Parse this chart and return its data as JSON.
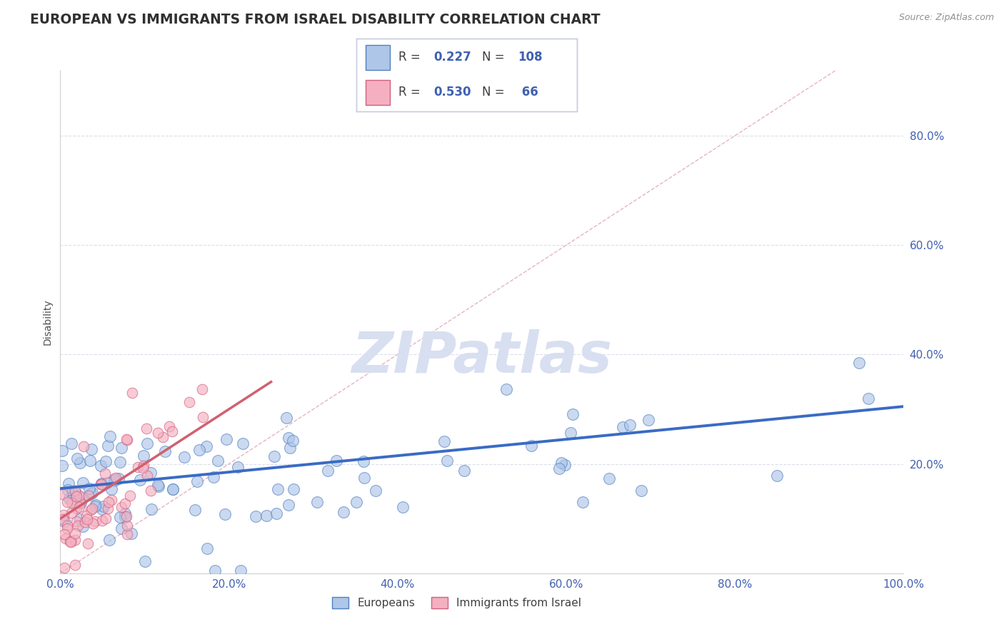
{
  "title": "EUROPEAN VS IMMIGRANTS FROM ISRAEL DISABILITY CORRELATION CHART",
  "source_text": "Source: ZipAtlas.com",
  "ylabel": "Disability",
  "xticklabels": [
    "0.0%",
    "",
    "",
    "",
    "",
    "20.0%",
    "",
    "",
    "",
    "",
    "40.0%",
    "",
    "",
    "",
    "",
    "60.0%",
    "",
    "",
    "",
    "",
    "80.0%",
    "",
    "",
    "",
    "",
    "100.0%"
  ],
  "ytick_vals": [
    0.2,
    0.4,
    0.6,
    0.8
  ],
  "ytick_labels": [
    "20.0%",
    "40.0%",
    "60.0%",
    "80.0%"
  ],
  "color_european": "#aec6e8",
  "color_israel": "#f4b0c0",
  "color_european_edge": "#5080c0",
  "color_israel_edge": "#d06080",
  "color_european_line": "#3a6bc4",
  "color_israel_line": "#d06070",
  "color_diag_line": "#e0a0b0",
  "watermark": "ZIPatlas",
  "watermark_color": "#d8dff0",
  "background_color": "#ffffff",
  "title_color": "#303030",
  "source_color": "#909090",
  "tick_color": "#4060b0",
  "grid_color": "#d8dce8",
  "legend_text_color": "#4060b0",
  "legend_border_color": "#c8cce0"
}
